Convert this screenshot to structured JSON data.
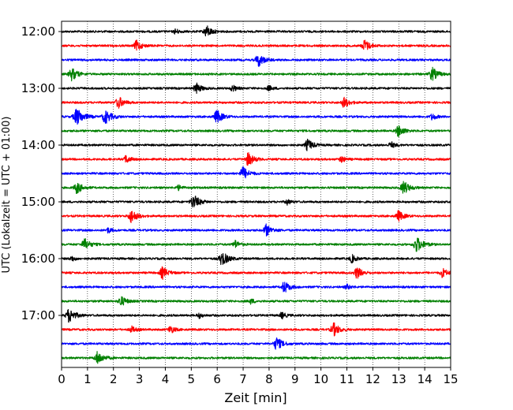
{
  "chart_data": {
    "type": "line",
    "title": "",
    "xlabel": "Zeit  [min]",
    "ylabel": "UTC (Lokalzeit = UTC + 01:00)",
    "xlim": [
      0,
      15
    ],
    "xticks": [
      "0",
      "1",
      "2",
      "3",
      "4",
      "5",
      "6",
      "7",
      "8",
      "9",
      "10",
      "11",
      "12",
      "13",
      "14",
      "15"
    ],
    "ytick_labels": [
      "12:00",
      "13:00",
      "14:00",
      "15:00",
      "16:00",
      "17:00"
    ],
    "grid": "vertical dotted",
    "trace_colors": [
      "#000000",
      "#ff0000",
      "#0000ff",
      "#008000"
    ],
    "traces": [
      {
        "start": "12:00",
        "color": "#000000",
        "events": [
          [
            4.4,
            0.4
          ],
          [
            5.6,
            0.9
          ]
        ]
      },
      {
        "start": "12:15",
        "color": "#ff0000",
        "events": [
          [
            2.9,
            0.8
          ],
          [
            11.7,
            0.9
          ]
        ]
      },
      {
        "start": "12:30",
        "color": "#0000ff",
        "events": [
          [
            7.6,
            1.0
          ]
        ]
      },
      {
        "start": "12:45",
        "color": "#008000",
        "events": [
          [
            0.4,
            1.0
          ],
          [
            14.3,
            1.0
          ]
        ]
      },
      {
        "start": "13:00",
        "color": "#000000",
        "events": [
          [
            5.2,
            0.8
          ],
          [
            6.6,
            0.5
          ],
          [
            8.0,
            0.4
          ]
        ]
      },
      {
        "start": "13:15",
        "color": "#ff0000",
        "events": [
          [
            2.2,
            0.9
          ],
          [
            10.9,
            0.8
          ]
        ]
      },
      {
        "start": "13:30",
        "color": "#0000ff",
        "events": [
          [
            0.6,
            1.3
          ],
          [
            1.7,
            1.1
          ],
          [
            6.0,
            1.0
          ],
          [
            14.3,
            0.5
          ]
        ]
      },
      {
        "start": "13:45",
        "color": "#008000",
        "events": [
          [
            13.0,
            0.9
          ]
        ]
      },
      {
        "start": "14:00",
        "color": "#000000",
        "events": [
          [
            9.5,
            0.9
          ],
          [
            12.7,
            0.5
          ]
        ]
      },
      {
        "start": "14:15",
        "color": "#ff0000",
        "events": [
          [
            2.5,
            0.6
          ],
          [
            7.2,
            1.0
          ],
          [
            10.8,
            0.5
          ]
        ]
      },
      {
        "start": "14:30",
        "color": "#0000ff",
        "events": [
          [
            7.0,
            1.0
          ]
        ]
      },
      {
        "start": "14:45",
        "color": "#008000",
        "events": [
          [
            0.6,
            0.9
          ],
          [
            4.5,
            0.4
          ],
          [
            13.2,
            1.0
          ]
        ]
      },
      {
        "start": "15:00",
        "color": "#000000",
        "events": [
          [
            5.1,
            1.1
          ],
          [
            8.7,
            0.4
          ]
        ]
      },
      {
        "start": "15:15",
        "color": "#ff0000",
        "events": [
          [
            2.7,
            1.0
          ],
          [
            13.0,
            0.8
          ]
        ]
      },
      {
        "start": "15:30",
        "color": "#0000ff",
        "events": [
          [
            1.8,
            0.4
          ],
          [
            7.9,
            0.9
          ]
        ]
      },
      {
        "start": "15:45",
        "color": "#008000",
        "events": [
          [
            0.9,
            0.9
          ],
          [
            6.7,
            0.6
          ],
          [
            13.7,
            1.2
          ]
        ]
      },
      {
        "start": "16:00",
        "color": "#000000",
        "events": [
          [
            0.4,
            0.4
          ],
          [
            6.2,
            1.1
          ],
          [
            11.2,
            0.6
          ]
        ]
      },
      {
        "start": "16:15",
        "color": "#ff0000",
        "events": [
          [
            3.9,
            0.9
          ],
          [
            11.4,
            0.9
          ],
          [
            14.7,
            0.7
          ]
        ]
      },
      {
        "start": "16:30",
        "color": "#0000ff",
        "events": [
          [
            8.6,
            0.9
          ],
          [
            11.0,
            0.4
          ]
        ]
      },
      {
        "start": "16:45",
        "color": "#008000",
        "events": [
          [
            2.3,
            0.8
          ],
          [
            7.3,
            0.4
          ]
        ]
      },
      {
        "start": "17:00",
        "color": "#000000",
        "events": [
          [
            0.3,
            1.1
          ],
          [
            5.3,
            0.4
          ],
          [
            8.5,
            0.5
          ]
        ]
      },
      {
        "start": "17:15",
        "color": "#ff0000",
        "events": [
          [
            2.7,
            0.5
          ],
          [
            4.2,
            0.6
          ],
          [
            10.5,
            1.0
          ]
        ]
      },
      {
        "start": "17:30",
        "color": "#0000ff",
        "events": [
          [
            8.3,
            1.0
          ]
        ]
      },
      {
        "start": "17:45",
        "color": "#008000",
        "events": [
          [
            1.4,
            1.0
          ]
        ]
      }
    ]
  }
}
